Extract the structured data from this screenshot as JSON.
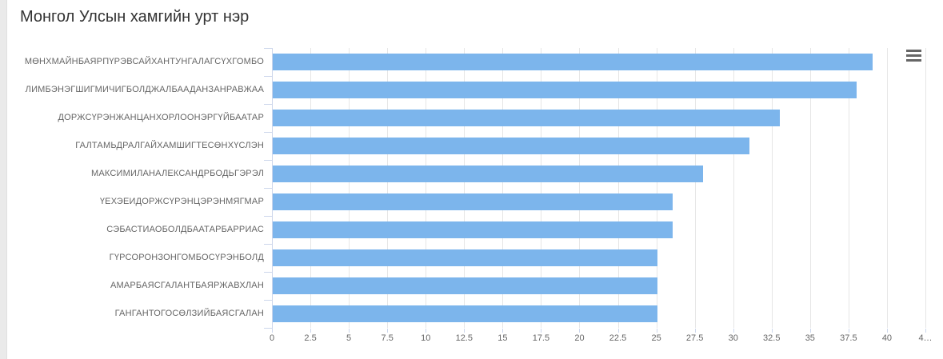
{
  "chart": {
    "context_menu_icon": "hamburger-icon"
  },
  "chart_data": {
    "type": "bar",
    "orientation": "horizontal",
    "title": "Монгол Улсын хамгийн урт нэр",
    "categories": [
      "МӨНХМАЙНБАЯРПҮРЭВСАЙХАНТУНГАЛАГСҮХГОМБО",
      "ЛИМБЭНЭГШИГМИЧИГБОЛДЖАЛБААДАНЗАНРАВЖАА",
      "ДОРЖСҮРЭНЖАНЦАНХОРЛООНЭРГҮЙБААТАР",
      "ГАЛТАМЬДРАЛГАЙХАМШИГТЕСӨНХҮСЛЭН",
      "МАКСИМИЛАНАЛЕКСАНДРБОДЬГЭРЭЛ",
      "ҮЕХЭЕИДОРЖСҮРЭНЦЭРЭНМЯГМАР",
      "СЭБАСТИАОБОЛДБААТАРБАРРИАС",
      "ГҮРСОРОНЗОНГОМБОСҮРЭНБОЛД",
      "АМАРБАЯСГАЛАНТБАЯРЖАВХЛАН",
      "ГАНГАНТОГОСӨЛЗИЙБАЯСГАЛАН"
    ],
    "values": [
      39,
      38,
      33,
      31,
      28,
      26,
      26,
      25,
      25,
      25
    ],
    "xlabel": "",
    "ylabel": "",
    "xlim": [
      0,
      42.5
    ],
    "tick_interval": 2.5,
    "x_tick_labels": [
      "0",
      "2.5",
      "5",
      "7.5",
      "10",
      "12.5",
      "15",
      "17.5",
      "20",
      "22.5",
      "25",
      "27.5",
      "30",
      "32.5",
      "35",
      "37.5",
      "40",
      "4…"
    ],
    "grid": true,
    "legend_position": "none"
  },
  "colors": {
    "bar": "#7cb5ec",
    "grid": "#e6e6e6",
    "axis": "#ccd6eb",
    "title_text": "#333333",
    "label_text": "#666666",
    "menu_icon": "#666666",
    "page_edge": "#eaeaea"
  }
}
